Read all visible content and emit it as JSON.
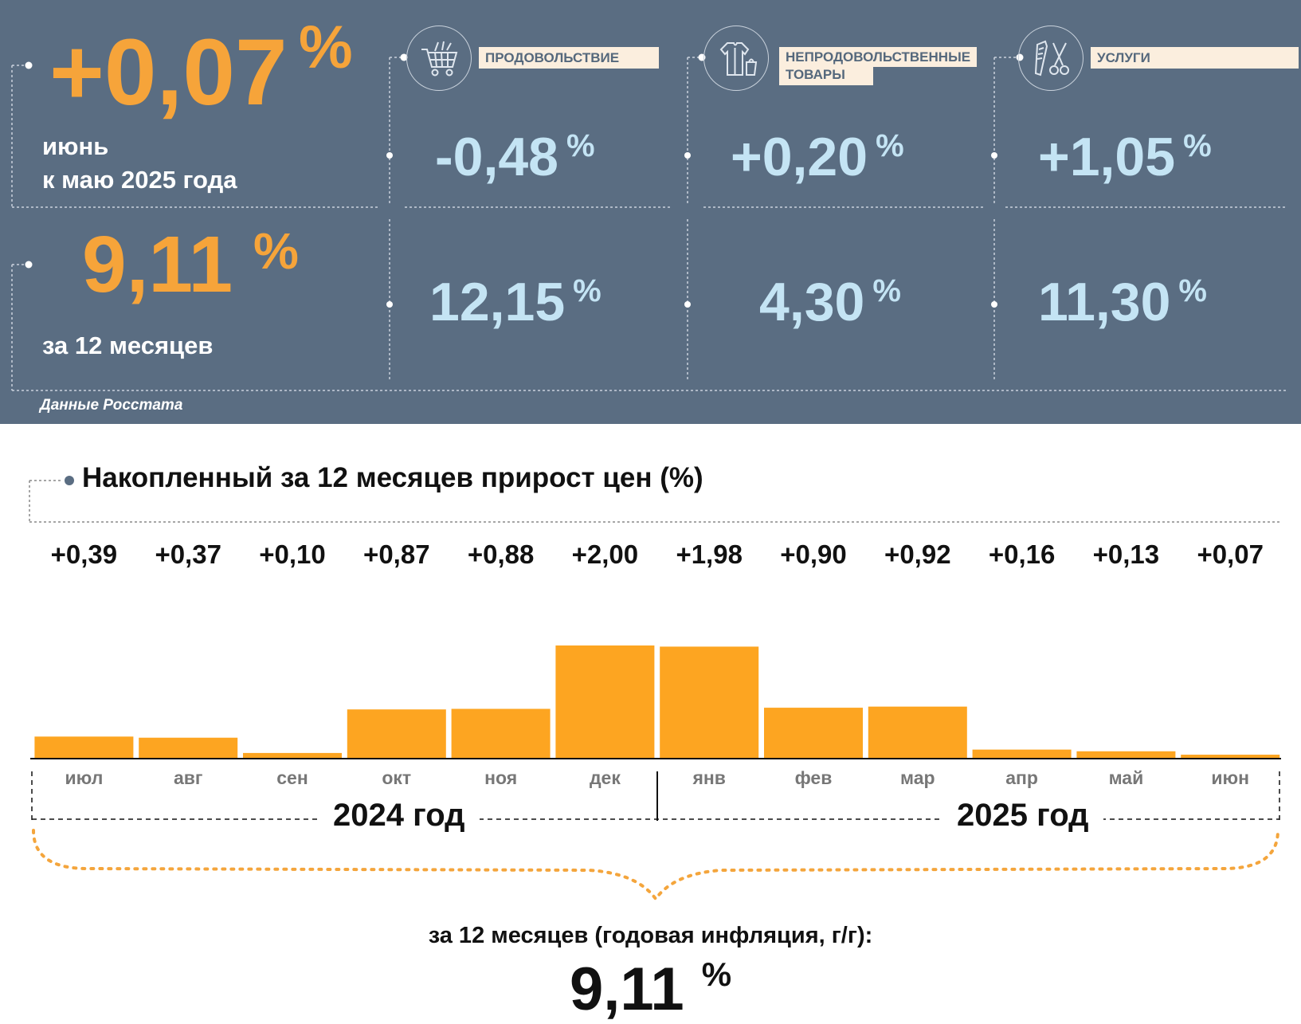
{
  "panel": {
    "monthly": {
      "value": "+0,07",
      "unit": "%",
      "line1": "июнь",
      "line2": "к маю 2025 года"
    },
    "annual": {
      "value": "9,11",
      "unit": "%",
      "label": "за 12 месяцев"
    },
    "categories": [
      {
        "label": "ПРОДОВОЛЬСТВИЕ",
        "icon": "shopping-cart-icon",
        "monthly": "-0,48",
        "annual": "12,15",
        "unit": "%"
      },
      {
        "label_line1": "НЕПРОДОВОЛЬСТВЕННЫЕ",
        "label_line2": "ТОВАРЫ",
        "icon": "clothes-icon",
        "monthly": "+0,20",
        "annual": "4,30",
        "unit": "%"
      },
      {
        "label": "УСЛУГИ",
        "icon": "comb-scissors-icon",
        "monthly": "+1,05",
        "annual": "11,30",
        "unit": "%"
      }
    ],
    "source": "Данные Росстата"
  },
  "colors": {
    "panel_bg": "#5a6d82",
    "accent_orange": "#f6a43a",
    "bar_orange": "#fda521",
    "value_blue": "#c4e4f4",
    "label_bg": "#fbeede"
  },
  "chart_data": {
    "type": "bar",
    "title": "Накопленный за 12 месяцев прирост цен (%)",
    "categories": [
      "июл",
      "авг",
      "сен",
      "окт",
      "ноя",
      "дек",
      "янв",
      "фев",
      "мар",
      "апр",
      "май",
      "июн"
    ],
    "values": [
      0.39,
      0.37,
      0.1,
      0.87,
      0.88,
      2.0,
      1.98,
      0.9,
      0.92,
      0.16,
      0.13,
      0.07
    ],
    "value_labels": [
      "+0,39",
      "+0,37",
      "+0,10",
      "+0,87",
      "+0,88",
      "+2,00",
      "+1,98",
      "+0,90",
      "+0,92",
      "+0,16",
      "+0,13",
      "+0,07"
    ],
    "groups": [
      {
        "label": "2024 год",
        "from": "июл",
        "to": "дек"
      },
      {
        "label": "2025 год",
        "from": "янв",
        "to": "июн"
      }
    ],
    "ylim": [
      0,
      2.0
    ],
    "grid": false,
    "legend": "none"
  },
  "summary": {
    "label": "за 12 месяцев (годовая инфляция, г/г):",
    "value": "9,11",
    "unit": "%"
  }
}
